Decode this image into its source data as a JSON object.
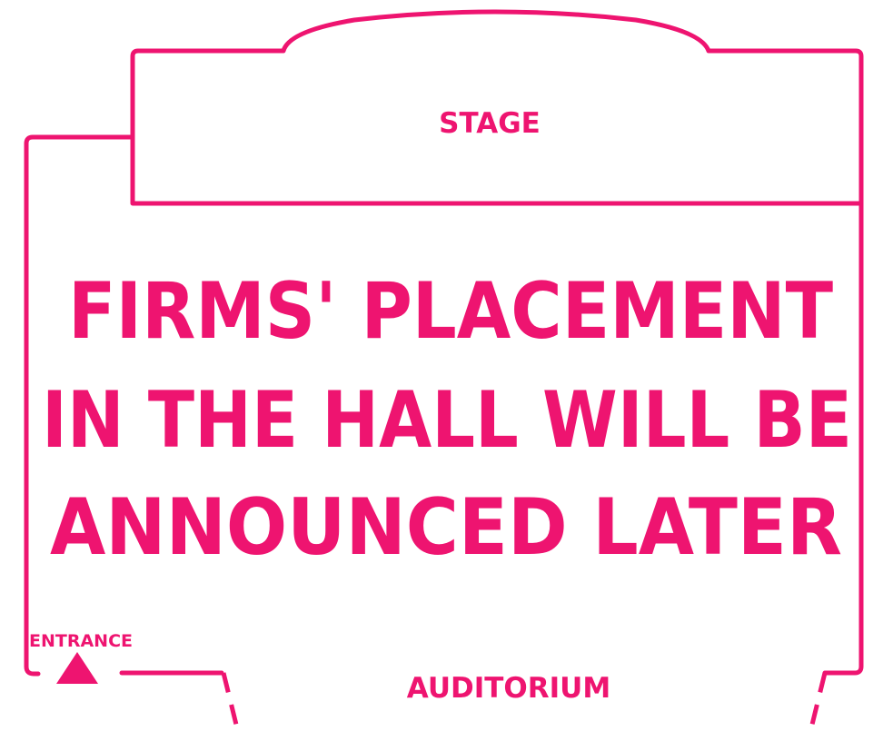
{
  "labels": {
    "stage": "STAGE",
    "auditorium": "AUDITORIUM",
    "entrance": "ENTRANCE"
  },
  "notice": {
    "line1": "FIRMS' PLACEMENT",
    "line2": "IN THE HALL WILL BE",
    "line3": "ANNOUNCED LATER"
  },
  "icons": {
    "entrance": "triangle-up-icon"
  },
  "colors": {
    "accent": "#ee1470",
    "background": "#ffffff"
  }
}
